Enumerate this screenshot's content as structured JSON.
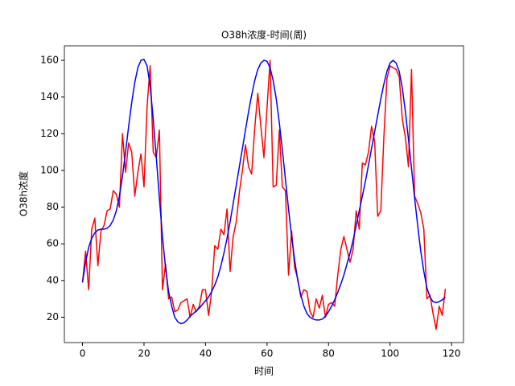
{
  "chart_data": {
    "type": "line",
    "title": "O38h浓度-时间(周)",
    "x_label": "时间",
    "y_label": "O38h浓度",
    "x": [
      0,
      1,
      2,
      3,
      4,
      5,
      6,
      7,
      8,
      9,
      10,
      11,
      12,
      13,
      14,
      15,
      16,
      17,
      18,
      19,
      20,
      21,
      22,
      23,
      24,
      25,
      26,
      27,
      28,
      29,
      30,
      31,
      32,
      33,
      34,
      35,
      36,
      37,
      38,
      39,
      40,
      41,
      42,
      43,
      44,
      45,
      46,
      47,
      48,
      49,
      50,
      51,
      52,
      53,
      54,
      55,
      56,
      57,
      58,
      59,
      60,
      61,
      62,
      63,
      64,
      65,
      66,
      67,
      68,
      69,
      70,
      71,
      72,
      73,
      74,
      75,
      76,
      77,
      78,
      79,
      80,
      81,
      82,
      83,
      84,
      85,
      86,
      87,
      88,
      89,
      90,
      91,
      92,
      93,
      94,
      95,
      96,
      97,
      98,
      99,
      100,
      101,
      102,
      103,
      104,
      105,
      106,
      107,
      108,
      109,
      110,
      111,
      112,
      113,
      114,
      115,
      116,
      117,
      118
    ],
    "series": [
      {
        "color": "#ff0000",
        "values": [
          39,
          56,
          35,
          68,
          74,
          48,
          67,
          70,
          78,
          79,
          89,
          87,
          80,
          120,
          99,
          115,
          110,
          86,
          99,
          109,
          91,
          135,
          157,
          110,
          107,
          122,
          35,
          49,
          30,
          31,
          23,
          24,
          28,
          29,
          30,
          20,
          27,
          23,
          26,
          35,
          35,
          21,
          34,
          59,
          57,
          68,
          65,
          79,
          45,
          64,
          72,
          88,
          100,
          114,
          102,
          98,
          123,
          142,
          124,
          107,
          134,
          160,
          91,
          92,
          122,
          91,
          89,
          43,
          67,
          47,
          41,
          31,
          35,
          34,
          23,
          20,
          30,
          25,
          32,
          20,
          27,
          28,
          26,
          43,
          57,
          64,
          57,
          50,
          57,
          78,
          68,
          104,
          103,
          110,
          124,
          116,
          75,
          78,
          118,
          150,
          157,
          156,
          155,
          151,
          128,
          118,
          102,
          155,
          86,
          82,
          77,
          68,
          30,
          32,
          22,
          13.5,
          26,
          21,
          35.5
        ]
      },
      {
        "color": "#0000ff",
        "values": [
          39,
          50,
          58,
          63,
          66,
          67.5,
          68,
          68,
          68.5,
          70,
          73,
          78,
          86,
          97,
          110,
          124,
          137,
          148,
          156,
          160,
          160.5,
          157,
          146,
          128,
          107,
          85,
          64,
          47,
          34,
          26,
          20,
          17.5,
          16.5,
          17,
          18.5,
          20.5,
          22,
          23.5,
          25,
          27,
          29,
          31,
          34,
          37.5,
          42,
          48,
          55,
          63,
          72,
          82,
          92,
          102,
          112,
          122,
          132,
          141,
          149,
          155,
          158.5,
          160,
          159.5,
          156,
          149,
          139,
          126,
          111,
          95,
          79,
          64,
          51,
          40,
          32,
          26,
          22,
          20,
          19,
          18.5,
          18.5,
          19,
          20.5,
          23,
          26,
          29.5,
          33.5,
          38,
          43,
          49,
          55,
          62,
          70,
          78,
          86,
          94,
          103,
          112,
          121,
          130,
          139,
          147,
          154,
          158.5,
          160,
          158.5,
          154,
          145,
          132,
          117,
          101,
          85,
          70,
          56,
          45,
          36,
          31,
          28.5,
          28,
          28.5,
          29.5,
          31
        ]
      }
    ],
    "xlim": [
      -5.9,
      123.9
    ],
    "ylim": [
      6.2,
      167.9
    ],
    "xticks": [
      0,
      20,
      40,
      60,
      80,
      100,
      120
    ],
    "yticks": [
      20,
      40,
      60,
      80,
      100,
      120,
      140,
      160
    ]
  }
}
